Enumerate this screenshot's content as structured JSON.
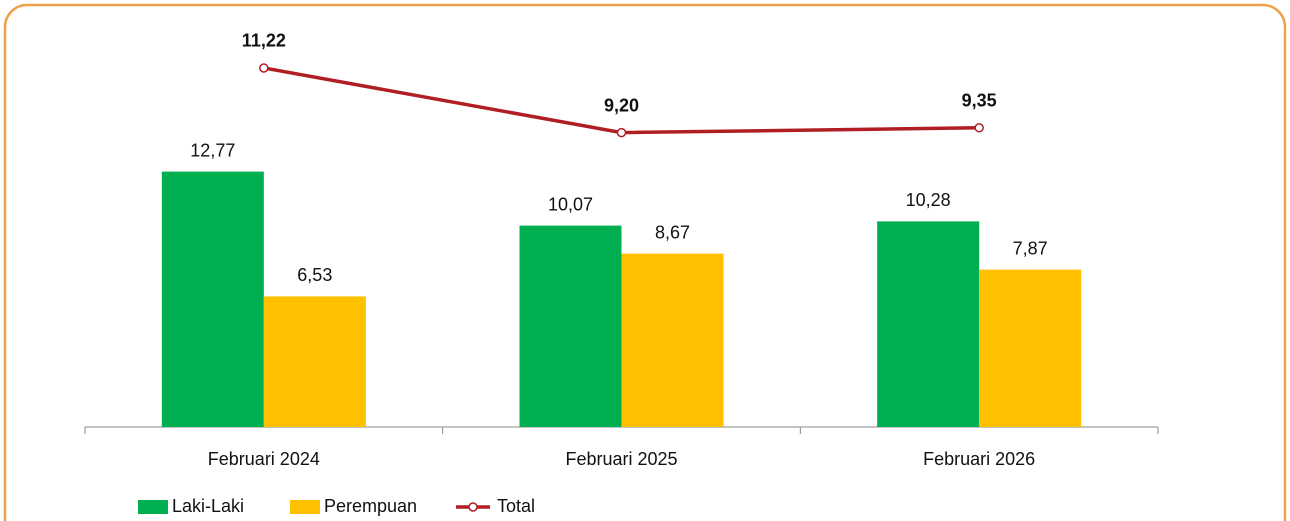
{
  "chart_data": {
    "type": "bar",
    "categories": [
      "Februari 2024",
      "Februari 2025",
      "Februari 2026"
    ],
    "series": [
      {
        "name": "Laki-Laki",
        "type": "bar",
        "color": "#00b050",
        "values": [
          12.77,
          10.07,
          10.28
        ],
        "value_labels": [
          "12,77",
          "10,07",
          "10,28"
        ]
      },
      {
        "name": "Perempuan",
        "type": "bar",
        "color": "#ffc000",
        "values": [
          6.53,
          8.67,
          7.87
        ],
        "value_labels": [
          "6,53",
          "8,67",
          "7,87"
        ]
      },
      {
        "name": "Total",
        "type": "line",
        "axis": "y2",
        "color": "#b01e23",
        "values": [
          11.22,
          9.2,
          9.35
        ],
        "value_labels": [
          "11,22",
          "9,20",
          "9,35"
        ]
      }
    ],
    "ylim": [
      0,
      20
    ],
    "y2lim": [
      0,
      12.5
    ],
    "legend": "bottom"
  }
}
